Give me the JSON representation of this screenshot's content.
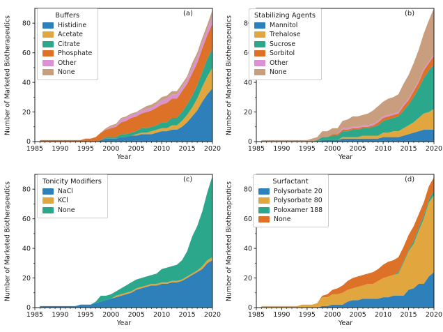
{
  "chart_data": [
    {
      "type": "area",
      "stacked": true,
      "panel_label": "(a)",
      "legend_title": "Buffers",
      "xlabel": "Year",
      "ylabel": "Number of Marketed Biotherapeutics",
      "xlim": [
        1985,
        2020
      ],
      "ylim": [
        0,
        90
      ],
      "xticks": [
        1985,
        1990,
        1995,
        2000,
        2005,
        2010,
        2015,
        2020
      ],
      "yticks": [
        0,
        20,
        40,
        60,
        80
      ],
      "grid": false,
      "legend_position": "upper-left",
      "x": [
        1986,
        1987,
        1988,
        1989,
        1990,
        1991,
        1992,
        1993,
        1994,
        1995,
        1996,
        1997,
        1998,
        1999,
        2000,
        2001,
        2002,
        2003,
        2004,
        2005,
        2006,
        2007,
        2008,
        2009,
        2010,
        2011,
        2012,
        2013,
        2014,
        2015,
        2016,
        2017,
        2018,
        2019,
        2020
      ],
      "series": [
        {
          "name": "Histidine",
          "color": "#2e80ba",
          "values": [
            0,
            0,
            0,
            0,
            0,
            0,
            0,
            0,
            0,
            0,
            0,
            0,
            1,
            2,
            2,
            2,
            3,
            3,
            4,
            4,
            5,
            5,
            5,
            6,
            7,
            7,
            8,
            8,
            10,
            13,
            17,
            21,
            27,
            32,
            36
          ]
        },
        {
          "name": "Acetate",
          "color": "#e1a63d",
          "values": [
            0,
            0,
            0,
            0,
            0,
            0,
            0,
            0,
            0,
            0,
            0,
            0,
            0,
            0,
            0,
            0,
            0,
            0,
            0,
            1,
            1,
            1,
            2,
            2,
            2,
            2,
            3,
            3,
            4,
            5,
            6,
            8,
            10,
            12,
            14
          ]
        },
        {
          "name": "Citrate",
          "color": "#2ba88c",
          "values": [
            0,
            0,
            0,
            0,
            0,
            0,
            0,
            0,
            0,
            0,
            0,
            0,
            0,
            1,
            1,
            1,
            2,
            2,
            2,
            2,
            3,
            3,
            3,
            3,
            4,
            4,
            5,
            5,
            6,
            7,
            8,
            9,
            10,
            12,
            13
          ]
        },
        {
          "name": "Phosphate",
          "color": "#dd7127",
          "values": [
            1,
            1,
            1,
            1,
            1,
            1,
            1,
            1,
            1,
            2,
            2,
            3,
            5,
            5,
            6,
            7,
            8,
            9,
            10,
            10,
            10,
            11,
            11,
            12,
            12,
            13,
            13,
            13,
            14,
            14,
            15,
            15,
            16,
            16,
            17
          ]
        },
        {
          "name": "Other",
          "color": "#da93d2",
          "values": [
            0,
            0,
            0,
            0,
            0,
            0,
            0,
            0,
            0,
            0,
            0,
            0,
            0,
            0,
            1,
            1,
            2,
            2,
            2,
            2,
            2,
            2,
            2,
            2,
            3,
            3,
            3,
            3,
            3,
            3,
            4,
            4,
            4,
            4,
            5
          ]
        },
        {
          "name": "None",
          "color": "#c89e7e",
          "values": [
            0,
            0,
            0,
            0,
            0,
            0,
            0,
            0,
            0,
            0,
            0,
            0,
            0,
            1,
            1,
            1,
            1,
            1,
            1,
            1,
            1,
            2,
            2,
            2,
            2,
            2,
            2,
            2,
            2,
            2,
            3,
            3,
            3,
            3,
            4
          ]
        }
      ]
    },
    {
      "type": "area",
      "stacked": true,
      "panel_label": "(b)",
      "legend_title": "Stabilizing Agents",
      "xlabel": "Year",
      "ylabel": "Number of Marketed Biotherapeutics",
      "xlim": [
        1985,
        2020
      ],
      "ylim": [
        0,
        90
      ],
      "xticks": [
        1985,
        1990,
        1995,
        2000,
        2005,
        2010,
        2015,
        2020
      ],
      "yticks": [
        0,
        20,
        40,
        60,
        80
      ],
      "grid": false,
      "legend_position": "upper-left",
      "x": [
        1986,
        1987,
        1988,
        1989,
        1990,
        1991,
        1992,
        1993,
        1994,
        1995,
        1996,
        1997,
        1998,
        1999,
        2000,
        2001,
        2002,
        2003,
        2004,
        2005,
        2006,
        2007,
        2008,
        2009,
        2010,
        2011,
        2012,
        2013,
        2014,
        2015,
        2016,
        2017,
        2018,
        2019,
        2020
      ],
      "series": [
        {
          "name": "Mannitol",
          "color": "#2e80ba",
          "values": [
            0,
            0,
            0,
            0,
            0,
            0,
            0,
            0,
            0,
            0,
            0,
            0,
            1,
            1,
            1,
            1,
            2,
            2,
            2,
            2,
            2,
            2,
            2,
            2,
            3,
            3,
            3,
            3,
            4,
            5,
            6,
            7,
            8,
            8,
            8
          ]
        },
        {
          "name": "Trehalose",
          "color": "#e1a63d",
          "values": [
            0,
            0,
            0,
            0,
            0,
            0,
            0,
            0,
            0,
            0,
            0,
            0,
            0,
            0,
            0,
            0,
            1,
            1,
            1,
            1,
            2,
            2,
            2,
            2,
            3,
            3,
            4,
            4,
            5,
            6,
            7,
            9,
            11,
            12,
            14
          ]
        },
        {
          "name": "Sucrose",
          "color": "#2ba88c",
          "values": [
            0,
            0,
            0,
            0,
            0,
            0,
            0,
            0,
            0,
            0,
            0,
            1,
            2,
            2,
            3,
            3,
            4,
            4,
            5,
            5,
            5,
            5,
            6,
            7,
            8,
            9,
            9,
            10,
            12,
            14,
            17,
            20,
            24,
            28,
            30
          ]
        },
        {
          "name": "Sorbitol",
          "color": "#dd7127",
          "values": [
            0,
            0,
            0,
            0,
            0,
            0,
            0,
            0,
            0,
            0,
            0,
            0,
            0,
            0,
            1,
            1,
            1,
            1,
            1,
            1,
            1,
            1,
            1,
            2,
            2,
            2,
            2,
            2,
            3,
            3,
            4,
            4,
            5,
            5,
            6
          ]
        },
        {
          "name": "Other",
          "color": "#da93d2",
          "values": [
            0,
            0,
            0,
            0,
            0,
            0,
            0,
            0,
            0,
            0,
            0,
            0,
            0,
            0,
            0,
            0,
            1,
            1,
            1,
            1,
            1,
            1,
            1,
            1,
            1,
            1,
            1,
            1,
            1,
            1,
            1,
            1,
            1,
            1,
            1
          ]
        },
        {
          "name": "None",
          "color": "#c89e7e",
          "values": [
            1,
            1,
            1,
            1,
            1,
            1,
            1,
            1,
            1,
            1,
            2,
            2,
            4,
            4,
            4,
            4,
            5,
            6,
            7,
            7,
            7,
            8,
            9,
            10,
            10,
            11,
            11,
            12,
            14,
            16,
            18,
            21,
            24,
            28,
            31
          ]
        }
      ]
    },
    {
      "type": "area",
      "stacked": true,
      "panel_label": "(c)",
      "legend_title": "Tonicity Modifiers",
      "xlabel": "Year",
      "ylabel": "Number of Marketed Biotherapeutics",
      "xlim": [
        1985,
        2020
      ],
      "ylim": [
        0,
        90
      ],
      "xticks": [
        1985,
        1990,
        1995,
        2000,
        2005,
        2010,
        2015,
        2020
      ],
      "yticks": [
        0,
        20,
        40,
        60,
        80
      ],
      "grid": false,
      "legend_position": "upper-left",
      "x": [
        1986,
        1987,
        1988,
        1989,
        1990,
        1991,
        1992,
        1993,
        1994,
        1995,
        1996,
        1997,
        1998,
        1999,
        2000,
        2001,
        2002,
        2003,
        2004,
        2005,
        2006,
        2007,
        2008,
        2009,
        2010,
        2011,
        2012,
        2013,
        2014,
        2015,
        2016,
        2017,
        2018,
        2019,
        2020
      ],
      "series": [
        {
          "name": "NaCl",
          "color": "#2e80ba",
          "values": [
            1,
            1,
            1,
            1,
            1,
            1,
            1,
            1,
            2,
            2,
            2,
            3,
            4,
            5,
            6,
            7,
            8,
            9,
            10,
            12,
            13,
            14,
            15,
            15,
            16,
            16,
            17,
            17,
            18,
            20,
            22,
            24,
            26,
            30,
            32
          ]
        },
        {
          "name": "KCl",
          "color": "#e1a63d",
          "values": [
            0,
            0,
            0,
            0,
            0,
            0,
            0,
            0,
            0,
            0,
            0,
            0,
            0,
            0,
            0,
            1,
            1,
            1,
            1,
            1,
            1,
            1,
            1,
            1,
            1,
            1,
            1,
            1,
            1,
            1,
            1,
            1,
            2,
            2,
            2
          ]
        },
        {
          "name": "None",
          "color": "#2ba88c",
          "values": [
            0,
            0,
            0,
            0,
            0,
            0,
            0,
            0,
            0,
            0,
            0,
            1,
            4,
            3,
            3,
            3,
            4,
            5,
            6,
            6,
            6,
            6,
            6,
            7,
            9,
            10,
            10,
            11,
            13,
            17,
            25,
            30,
            37,
            46,
            55
          ]
        }
      ]
    },
    {
      "type": "area",
      "stacked": true,
      "panel_label": "(d)",
      "legend_title": "Surfactant",
      "xlabel": "Year",
      "ylabel": "Number of Marketed Biotherapeutics",
      "xlim": [
        1985,
        2020
      ],
      "ylim": [
        0,
        90
      ],
      "xticks": [
        1985,
        1990,
        1995,
        2000,
        2005,
        2010,
        2015,
        2020
      ],
      "yticks": [
        0,
        20,
        40,
        60,
        80
      ],
      "grid": false,
      "legend_position": "upper-left",
      "x": [
        1986,
        1987,
        1988,
        1989,
        1990,
        1991,
        1992,
        1993,
        1994,
        1995,
        1996,
        1997,
        1998,
        1999,
        2000,
        2001,
        2002,
        2003,
        2004,
        2005,
        2006,
        2007,
        2008,
        2009,
        2010,
        2011,
        2012,
        2013,
        2014,
        2015,
        2016,
        2017,
        2018,
        2019,
        2020
      ],
      "series": [
        {
          "name": "Polysorbate 20",
          "color": "#2e80ba",
          "values": [
            0,
            0,
            0,
            0,
            0,
            0,
            0,
            0,
            0,
            0,
            0,
            0,
            1,
            1,
            2,
            2,
            2,
            4,
            5,
            5,
            6,
            6,
            6,
            6,
            7,
            7,
            8,
            8,
            8,
            12,
            13,
            16,
            16,
            21,
            24
          ]
        },
        {
          "name": "Polysorbate 80",
          "color": "#e1a63d",
          "values": [
            1,
            1,
            1,
            1,
            1,
            1,
            1,
            1,
            2,
            2,
            2,
            3,
            6,
            6,
            7,
            7,
            8,
            8,
            8,
            9,
            9,
            10,
            10,
            12,
            13,
            14,
            14,
            15,
            22,
            26,
            30,
            36,
            44,
            50,
            52
          ]
        },
        {
          "name": "Poloxamer 188",
          "color": "#2ba88c",
          "values": [
            0,
            0,
            0,
            0,
            0,
            0,
            0,
            0,
            0,
            0,
            0,
            0,
            0,
            0,
            0,
            0,
            0,
            0,
            0,
            0,
            0,
            0,
            0,
            0,
            0,
            0,
            0,
            1,
            1,
            1,
            2,
            2,
            2,
            2,
            3
          ]
        },
        {
          "name": "None",
          "color": "#dd7127",
          "values": [
            0,
            0,
            0,
            0,
            0,
            0,
            0,
            0,
            0,
            0,
            0,
            0,
            1,
            2,
            3,
            4,
            5,
            6,
            7,
            7,
            7,
            7,
            8,
            8,
            9,
            10,
            10,
            10,
            10,
            10,
            10,
            9,
            9,
            9,
            9
          ]
        }
      ]
    }
  ]
}
